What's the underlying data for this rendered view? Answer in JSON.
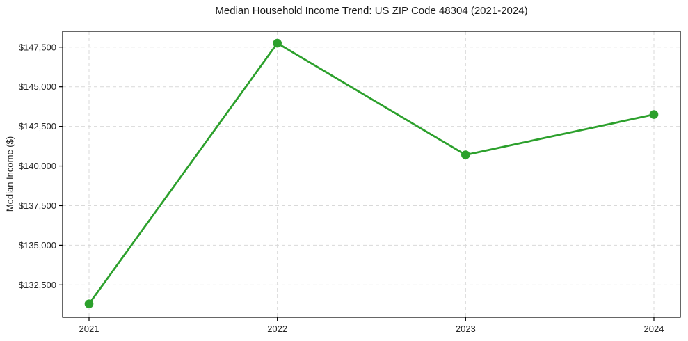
{
  "figure": {
    "title": "Median Household Income Trend: US ZIP Code 48304 (2021-2024)",
    "ylabel": "Median Income ($)"
  },
  "chart_data": {
    "type": "line",
    "title": "Median Household Income Trend: US ZIP Code 48304 (2021-2024)",
    "xlabel": "",
    "ylabel": "Median Income ($)",
    "x": [
      2021,
      2022,
      2023,
      2024
    ],
    "xtick_labels": [
      "2021",
      "2022",
      "2023",
      "2024"
    ],
    "series": [
      {
        "name": "Median Household Income",
        "values": [
          131300,
          147750,
          140700,
          143250
        ],
        "color": "#2ca02c",
        "marker": "circle"
      }
    ],
    "yticks": [
      132500,
      135000,
      137500,
      140000,
      142500,
      145000,
      147500
    ],
    "ytick_labels": [
      "$132,500",
      "$135,000",
      "$137,500",
      "$140,000",
      "$142,500",
      "$145,000",
      "$147,500"
    ],
    "ylim": [
      130450,
      148500
    ],
    "grid": true,
    "grid_style": "dashed",
    "legend": "none",
    "colors": {
      "line": "#2ca02c",
      "grid": "#d9d9d9",
      "spine": "#000000",
      "text": "#262626",
      "background": "#ffffff"
    }
  }
}
